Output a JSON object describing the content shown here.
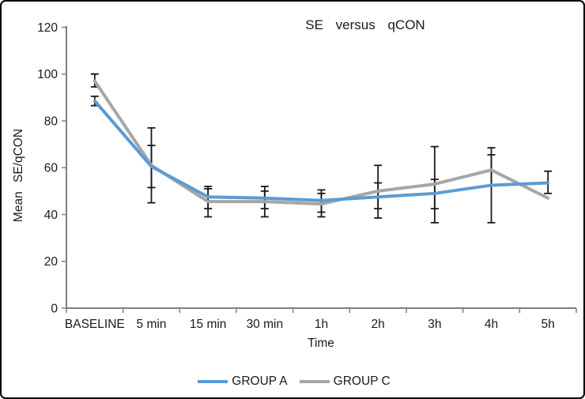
{
  "frame": {
    "border_color": "#000000",
    "background": "#ffffff"
  },
  "colors": {
    "axis": "#808080",
    "error_bar": "#1a1a1a",
    "text": "#1a1a1a",
    "group_a": "#5B9BD5",
    "group_c": "#A6A6A6"
  },
  "chart_data": {
    "type": "line",
    "title": "SE versus qCON",
    "ylabel": "Mean SE/qCON",
    "xlabel": "Time",
    "categories": [
      "BASELINE",
      "5 min",
      "15 min",
      "30 min",
      "1h",
      "2h",
      "3h",
      "4h",
      "5h"
    ],
    "y_ticks": [
      0,
      20,
      40,
      60,
      80,
      100,
      120
    ],
    "ylim": [
      0,
      120
    ],
    "grid": false,
    "legend_position": "bottom",
    "series": [
      {
        "name": "GROUP A",
        "color": "#5B9BD5",
        "values": [
          88.5,
          60.5,
          47.5,
          47,
          46,
          47.5,
          49,
          52.5,
          53.5
        ],
        "error_low": [
          86.5,
          51.5,
          42.5,
          42.5,
          41,
          42.5,
          42.5,
          36.5,
          49
        ],
        "error_high": [
          90.5,
          69.5,
          52,
          52,
          50.5,
          53.5,
          55,
          68.5,
          58.5
        ]
      },
      {
        "name": "GROUP C",
        "color": "#A6A6A6",
        "values": [
          97,
          61,
          45.5,
          45.5,
          44.5,
          50,
          53,
          59,
          47
        ],
        "error_low": [
          94.5,
          45,
          39,
          39,
          39,
          38.5,
          36.5,
          52.5,
          null
        ],
        "error_high": [
          100,
          77,
          51,
          50,
          49,
          61,
          69,
          65.5,
          null
        ]
      }
    ]
  }
}
